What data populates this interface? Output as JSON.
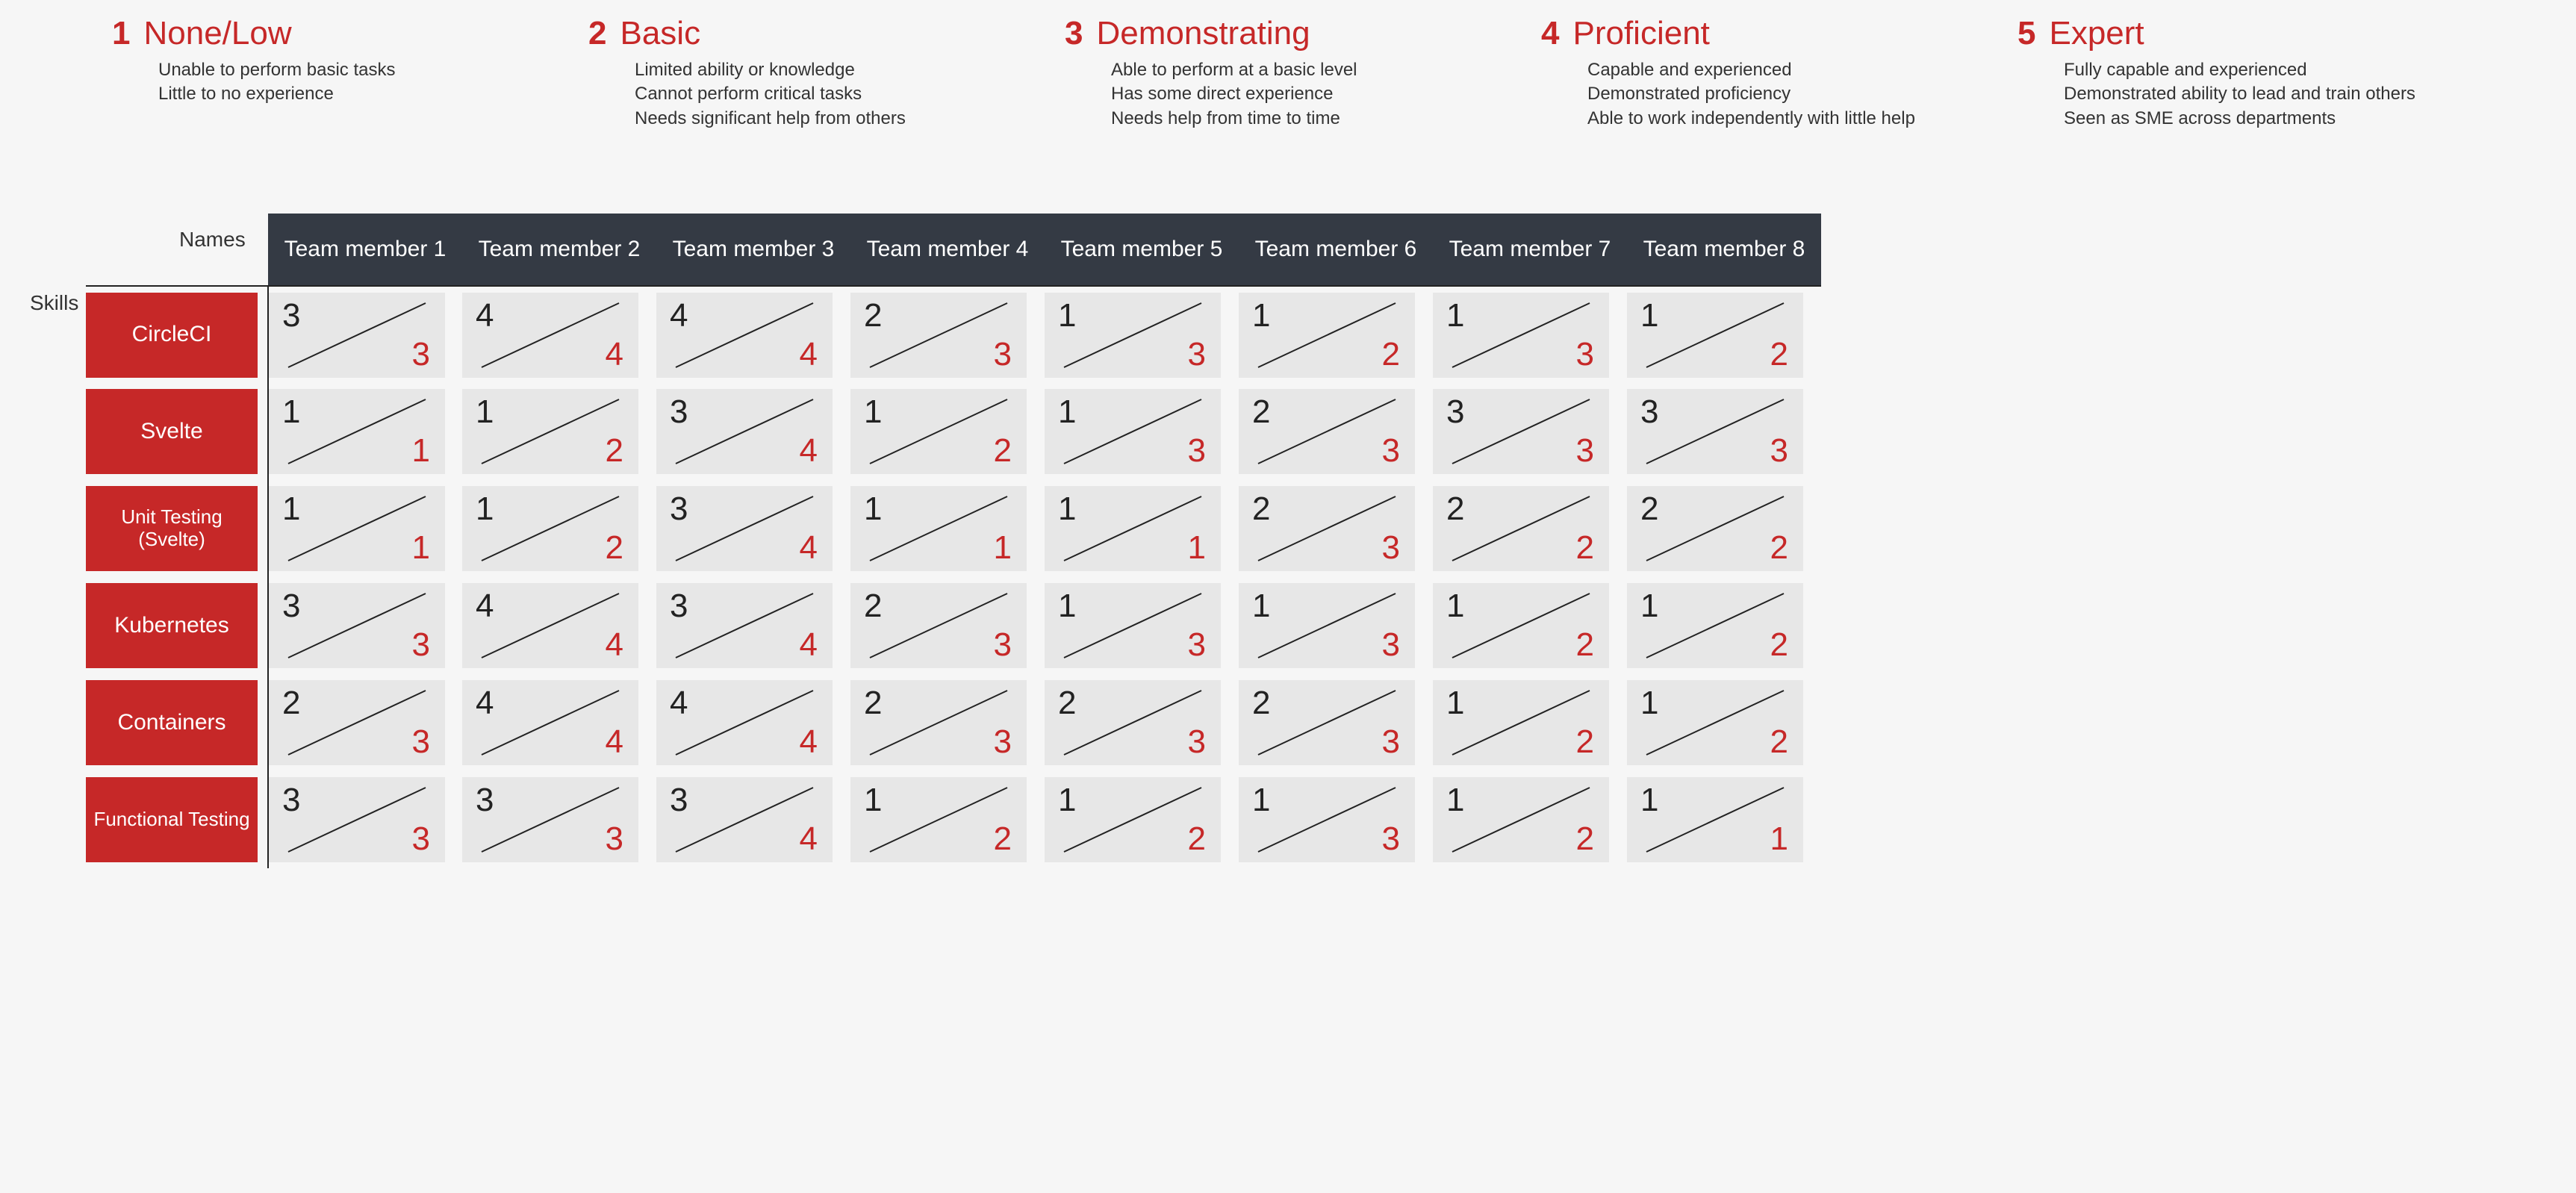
{
  "colors": {
    "accent_red": "#c62828",
    "header_bg": "#343a44",
    "cell_bg": "#e7e7e7",
    "page_bg": "#f6f6f6",
    "text_dark": "#222222",
    "line": "#222222"
  },
  "typography": {
    "legend_num_fontsize": 44,
    "legend_title_fontsize": 44,
    "legend_desc_fontsize": 24,
    "header_fontsize": 30,
    "skill_fontsize": 30,
    "score_fontsize": 44
  },
  "legend": [
    {
      "num": "1",
      "title": "None/Low",
      "lines": [
        "Unable to perform basic tasks",
        "Little to no experience"
      ]
    },
    {
      "num": "2",
      "title": "Basic",
      "lines": [
        "Limited ability or knowledge",
        "Cannot perform critical tasks",
        "Needs significant help from others"
      ]
    },
    {
      "num": "3",
      "title": "Demonstrating",
      "lines": [
        "Able to perform at a basic level",
        "Has some direct experience",
        "Needs help from time to time"
      ]
    },
    {
      "num": "4",
      "title": "Proficient",
      "lines": [
        "Capable and experienced",
        "Demonstrated proficiency",
        "Able to work independently with little help"
      ]
    },
    {
      "num": "5",
      "title": "Expert",
      "lines": [
        "Fully capable and experienced",
        "Demonstrated ability to lead and train others",
        "Seen as SME across departments"
      ]
    }
  ],
  "axis": {
    "names": "Names",
    "skills": "Skills"
  },
  "members": [
    "Team member 1",
    "Team member 2",
    "Team member 3",
    "Team member 4",
    "Team member 5",
    "Team member 6",
    "Team member 7",
    "Team member 8"
  ],
  "skills": [
    "CircleCI",
    "Svelte",
    "Unit Testing (Svelte)",
    "Kubernetes",
    "Containers",
    "Functional Testing"
  ],
  "matrix": {
    "type": "skills-matrix",
    "cell_shape": "split-diagonal",
    "top_left_meaning": "current",
    "bottom_right_meaning": "target",
    "rows": [
      {
        "skill": "CircleCI",
        "cells": [
          [
            3,
            3
          ],
          [
            4,
            4
          ],
          [
            4,
            4
          ],
          [
            2,
            3
          ],
          [
            1,
            3
          ],
          [
            1,
            2
          ],
          [
            1,
            3
          ],
          [
            1,
            2
          ]
        ]
      },
      {
        "skill": "Svelte",
        "cells": [
          [
            1,
            1
          ],
          [
            1,
            2
          ],
          [
            3,
            4
          ],
          [
            1,
            2
          ],
          [
            1,
            3
          ],
          [
            2,
            3
          ],
          [
            3,
            3
          ],
          [
            3,
            3
          ]
        ]
      },
      {
        "skill": "Unit Testing (Svelte)",
        "cells": [
          [
            1,
            1
          ],
          [
            1,
            2
          ],
          [
            3,
            4
          ],
          [
            1,
            1
          ],
          [
            1,
            1
          ],
          [
            2,
            3
          ],
          [
            2,
            2
          ],
          [
            2,
            2
          ]
        ]
      },
      {
        "skill": "Kubernetes",
        "cells": [
          [
            3,
            3
          ],
          [
            4,
            4
          ],
          [
            3,
            4
          ],
          [
            2,
            3
          ],
          [
            1,
            3
          ],
          [
            1,
            3
          ],
          [
            1,
            2
          ],
          [
            1,
            2
          ]
        ]
      },
      {
        "skill": "Containers",
        "cells": [
          [
            2,
            3
          ],
          [
            4,
            4
          ],
          [
            4,
            4
          ],
          [
            2,
            3
          ],
          [
            2,
            3
          ],
          [
            2,
            3
          ],
          [
            1,
            2
          ],
          [
            1,
            2
          ]
        ]
      },
      {
        "skill": "Functional Testing",
        "cells": [
          [
            3,
            3
          ],
          [
            3,
            3
          ],
          [
            3,
            4
          ],
          [
            1,
            2
          ],
          [
            1,
            2
          ],
          [
            1,
            3
          ],
          [
            1,
            2
          ],
          [
            1,
            1
          ]
        ]
      }
    ]
  }
}
